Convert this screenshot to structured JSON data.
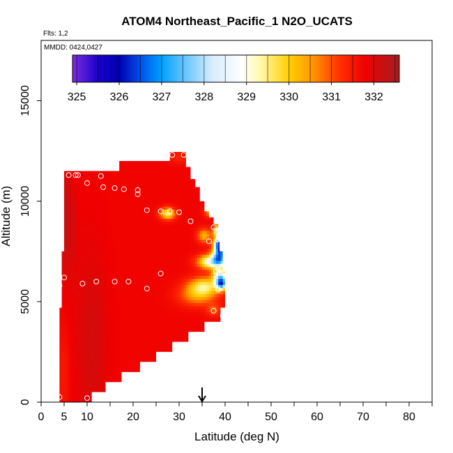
{
  "chart_data": {
    "type": "heatmap",
    "title": "ATOM4 Northeast_Pacific_1 N2O_UCATS",
    "subtitle": "Flts: 1,2",
    "annotation": "MMDD: 0424,0427",
    "xlabel": "Latitude (deg N)",
    "ylabel": "Altitude (m)",
    "xlim": [
      0,
      85
    ],
    "ylim": [
      0,
      18000
    ],
    "xticks": [
      0,
      5,
      10,
      20,
      30,
      40,
      50,
      60,
      70,
      80
    ],
    "xticks_minor": [
      15,
      25,
      35,
      45,
      55,
      65,
      75,
      85
    ],
    "yticks": [
      0,
      5000,
      10000,
      15000
    ],
    "colorbar": {
      "ticks": [
        325,
        326,
        327,
        328,
        329,
        330,
        331,
        332
      ],
      "range": [
        324.9,
        332.6
      ],
      "stops": [
        {
          "v": 324.9,
          "c": "#7c2ee0"
        },
        {
          "v": 325.5,
          "c": "#1a00c8"
        },
        {
          "v": 326.0,
          "c": "#0000b0"
        },
        {
          "v": 326.5,
          "c": "#0050e8"
        },
        {
          "v": 327.0,
          "c": "#00a0ff"
        },
        {
          "v": 327.6,
          "c": "#70c8ff"
        },
        {
          "v": 328.2,
          "c": "#d8ecff"
        },
        {
          "v": 328.9,
          "c": "#ffffff"
        },
        {
          "v": 329.3,
          "c": "#fffab0"
        },
        {
          "v": 330.0,
          "c": "#ffd000"
        },
        {
          "v": 330.6,
          "c": "#ff9000"
        },
        {
          "v": 331.2,
          "c": "#ff3000"
        },
        {
          "v": 331.8,
          "c": "#f00000"
        },
        {
          "v": 332.6,
          "c": "#a02020"
        }
      ]
    },
    "marker": {
      "x": 35,
      "label": "arrow"
    },
    "observations": [
      {
        "x": 4.0,
        "y": 250
      },
      {
        "x": 10.0,
        "y": 200
      },
      {
        "x": 4.0,
        "y": 5800
      },
      {
        "x": 5.0,
        "y": 6200
      },
      {
        "x": 9.0,
        "y": 5900
      },
      {
        "x": 12.0,
        "y": 6000
      },
      {
        "x": 16.0,
        "y": 6000
      },
      {
        "x": 19.0,
        "y": 6000
      },
      {
        "x": 23.0,
        "y": 5650
      },
      {
        "x": 26.0,
        "y": 6400
      },
      {
        "x": 6.0,
        "y": 11300
      },
      {
        "x": 7.5,
        "y": 11300
      },
      {
        "x": 8.0,
        "y": 11300
      },
      {
        "x": 10.0,
        "y": 10900
      },
      {
        "x": 13.0,
        "y": 11250
      },
      {
        "x": 13.5,
        "y": 10700
      },
      {
        "x": 16.0,
        "y": 10650
      },
      {
        "x": 18.0,
        "y": 10600
      },
      {
        "x": 21.0,
        "y": 10550
      },
      {
        "x": 21.0,
        "y": 10350
      },
      {
        "x": 23.0,
        "y": 9550
      },
      {
        "x": 26.0,
        "y": 9500
      },
      {
        "x": 28.0,
        "y": 9500
      },
      {
        "x": 30.0,
        "y": 9450
      },
      {
        "x": 28.5,
        "y": 12300
      },
      {
        "x": 31.0,
        "y": 12300
      },
      {
        "x": 32.5,
        "y": 9000
      },
      {
        "x": 36.5,
        "y": 8000
      },
      {
        "x": 37.5,
        "y": 8700
      },
      {
        "x": 38.5,
        "y": 8100
      },
      {
        "x": 38.0,
        "y": 6500
      },
      {
        "x": 38.5,
        "y": 5600
      },
      {
        "x": 37.5,
        "y": 4550
      },
      {
        "x": 39.5,
        "y": 4300
      }
    ]
  }
}
